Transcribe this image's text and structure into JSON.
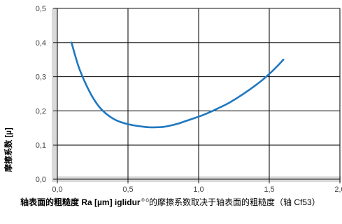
{
  "chart_data": {
    "type": "line",
    "ylabel": "摩擦系数 [µ]",
    "xlim": [
      0,
      2.0
    ],
    "ylim": [
      0,
      0.5
    ],
    "x_ticks": [
      "0,0",
      "0,5",
      "1,0",
      "1,5",
      "2,0"
    ],
    "y_ticks": [
      "0,0",
      "0,1",
      "0,2",
      "0,3",
      "0,4",
      "0,5"
    ],
    "grid": true,
    "series": [
      {
        "color": "#1f78c0",
        "x": [
          0.1,
          0.15,
          0.2,
          0.25,
          0.3,
          0.35,
          0.4,
          0.45,
          0.5,
          0.55,
          0.6,
          0.65,
          0.7,
          0.75,
          0.8,
          0.85,
          0.9,
          0.95,
          1.0,
          1.05,
          1.1,
          1.15,
          1.2,
          1.25,
          1.3,
          1.35,
          1.4,
          1.45,
          1.5,
          1.55,
          1.6
        ],
        "y": [
          0.4,
          0.33,
          0.28,
          0.24,
          0.21,
          0.19,
          0.176,
          0.167,
          0.161,
          0.157,
          0.154,
          0.152,
          0.152,
          0.153,
          0.157,
          0.162,
          0.169,
          0.176,
          0.183,
          0.191,
          0.2,
          0.21,
          0.22,
          0.232,
          0.245,
          0.259,
          0.274,
          0.29,
          0.308,
          0.328,
          0.35
        ]
      }
    ]
  },
  "caption": {
    "bold_part": "轴表面的粗糙度",
    "part1": " Ra [µm] iglidur",
    "sup": " ® G",
    "part2": "的摩擦系数取决于轴表面的粗糙度（轴 Cf53）"
  }
}
